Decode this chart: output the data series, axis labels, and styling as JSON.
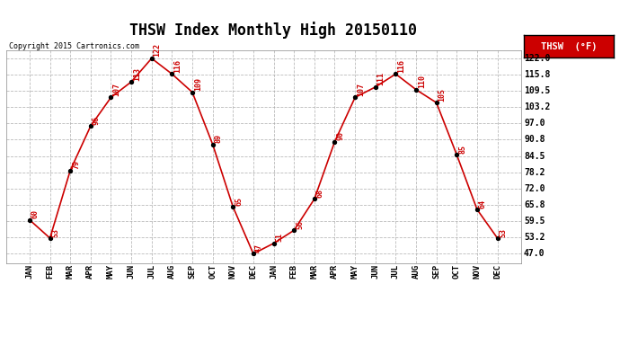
{
  "title": "THSW Index Monthly High 20150110",
  "copyright": "Copyright 2015 Cartronics.com",
  "legend_label": "THSW  (°F)",
  "x_labels": [
    "JAN",
    "FEB",
    "MAR",
    "APR",
    "MAY",
    "JUN",
    "JUL",
    "AUG",
    "SEP",
    "OCT",
    "NOV",
    "DEC",
    "JAN",
    "FEB",
    "MAR",
    "APR",
    "MAY",
    "JUN",
    "JUL",
    "AUG",
    "SEP",
    "OCT",
    "NOV",
    "DEC"
  ],
  "values": [
    60,
    53,
    79,
    96,
    107,
    113,
    122,
    116,
    109,
    89,
    65,
    47,
    51,
    56,
    68,
    90,
    107,
    111,
    116,
    110,
    105,
    85,
    64,
    53
  ],
  "y_ticks": [
    47.0,
    53.2,
    59.5,
    65.8,
    72.0,
    78.2,
    84.5,
    90.8,
    97.0,
    103.2,
    109.5,
    115.8,
    122.0
  ],
  "ylim": [
    43.5,
    125
  ],
  "line_color": "#cc0000",
  "marker_color": "#000000",
  "label_color": "#cc0000",
  "grid_color": "#aaaaaa",
  "background_color": "#ffffff",
  "plot_bg_color": "#ffffff",
  "title_fontsize": 12,
  "legend_bg": "#cc0000",
  "legend_text_color": "#ffffff"
}
